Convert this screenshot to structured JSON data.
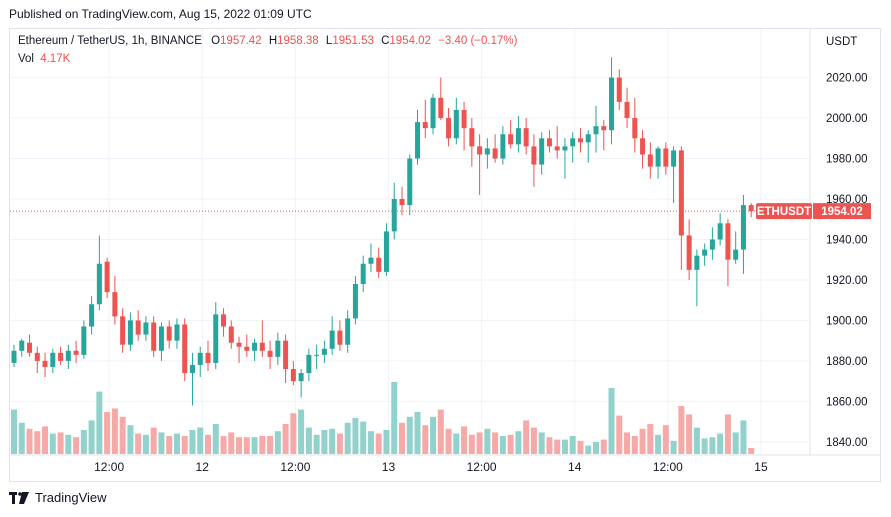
{
  "header": {
    "published": "Published on TradingView.com, Aug 15, 2022 01:09 UTC"
  },
  "legend": {
    "symbol": "Ethereum / TetherUS, 1h, BINANCE",
    "open_label": "O",
    "open": "1957.42",
    "high_label": "H",
    "high": "1958.38",
    "low_label": "L",
    "low": "1951.53",
    "close_label": "C",
    "close": "1954.02",
    "change": "−3.40 (−0.17%)",
    "vol_label": "Vol",
    "vol": "4.17K"
  },
  "price_axis": {
    "currency": "USDT",
    "ticks": [
      "2020.00",
      "2000.00",
      "1980.00",
      "1960.00",
      "1940.00",
      "1920.00",
      "1900.00",
      "1880.00",
      "1860.00",
      "1840.00"
    ],
    "tick_values": [
      2020,
      2000,
      1980,
      1960,
      1940,
      1920,
      1900,
      1880,
      1860,
      1840
    ],
    "last_symbol": "ETHUSDT",
    "last_price": "1954.02"
  },
  "time_axis": {
    "labels": [
      "12:00",
      "12",
      "12:00",
      "13",
      "12:00",
      "14",
      "12:00",
      "15"
    ],
    "label_index": [
      12,
      24,
      36,
      48,
      60,
      72,
      84,
      96
    ]
  },
  "footer": {
    "brand": "TradingView"
  },
  "colors": {
    "up": "#26a69a",
    "down": "#ef5350",
    "up_vol": "#92d2cc",
    "down_vol": "#f7a9a7",
    "grid": "#f0f3fa"
  },
  "chart_data": {
    "type": "candlestick",
    "title": "Ethereum / TetherUS, 1h, BINANCE",
    "ylabel": "USDT",
    "ylim": [
      1834,
      2044
    ],
    "candles": [
      [
        1879,
        1888,
        1877,
        1885,
        1.85
      ],
      [
        1885,
        1891,
        1882,
        1890,
        1.3
      ],
      [
        1889,
        1893,
        1882,
        1884,
        1.05
      ],
      [
        1884,
        1887,
        1874,
        1880,
        0.95
      ],
      [
        1880,
        1884,
        1872,
        1877,
        1.15
      ],
      [
        1877,
        1886,
        1874,
        1884,
        0.85
      ],
      [
        1884,
        1887,
        1878,
        1880,
        0.9
      ],
      [
        1880,
        1888,
        1876,
        1885,
        0.8
      ],
      [
        1885,
        1890,
        1879,
        1883,
        0.7
      ],
      [
        1883,
        1900,
        1881,
        1897,
        1.0
      ],
      [
        1897,
        1912,
        1893,
        1908,
        1.4
      ],
      [
        1908,
        1942,
        1905,
        1928,
        2.6
      ],
      [
        1929,
        1931,
        1911,
        1914,
        1.75
      ],
      [
        1914,
        1922,
        1898,
        1902,
        1.9
      ],
      [
        1902,
        1906,
        1884,
        1888,
        1.55
      ],
      [
        1888,
        1904,
        1885,
        1900,
        1.2
      ],
      [
        1900,
        1905,
        1890,
        1893,
        0.85
      ],
      [
        1893,
        1902,
        1890,
        1899,
        0.8
      ],
      [
        1899,
        1902,
        1882,
        1885,
        1.1
      ],
      [
        1885,
        1899,
        1880,
        1897,
        0.9
      ],
      [
        1897,
        1900,
        1886,
        1890,
        0.75
      ],
      [
        1890,
        1901,
        1886,
        1898,
        0.85
      ],
      [
        1898,
        1901,
        1870,
        1874,
        0.75
      ],
      [
        1874,
        1884,
        1858,
        1878,
        1.0
      ],
      [
        1878,
        1887,
        1872,
        1884,
        1.1
      ],
      [
        1884,
        1890,
        1875,
        1879,
        0.8
      ],
      [
        1879,
        1909,
        1876,
        1903,
        1.25
      ],
      [
        1903,
        1906,
        1892,
        1897,
        0.75
      ],
      [
        1897,
        1900,
        1886,
        1889,
        0.9
      ],
      [
        1889,
        1892,
        1879,
        1887,
        0.7
      ],
      [
        1887,
        1893,
        1882,
        1885,
        0.7
      ],
      [
        1885,
        1891,
        1880,
        1889,
        0.7
      ],
      [
        1889,
        1900,
        1882,
        1885,
        0.75
      ],
      [
        1885,
        1890,
        1876,
        1882,
        0.75
      ],
      [
        1882,
        1894,
        1878,
        1890,
        0.95
      ],
      [
        1890,
        1893,
        1869,
        1876,
        1.25
      ],
      [
        1876,
        1880,
        1868,
        1870,
        1.7
      ],
      [
        1870,
        1876,
        1862,
        1874,
        1.85
      ],
      [
        1874,
        1886,
        1870,
        1883,
        1.1
      ],
      [
        1883,
        1888,
        1876,
        1883,
        0.8
      ],
      [
        1883,
        1890,
        1879,
        1886,
        1.0
      ],
      [
        1886,
        1902,
        1883,
        1895,
        1.05
      ],
      [
        1895,
        1900,
        1885,
        1888,
        0.85
      ],
      [
        1888,
        1905,
        1884,
        1901,
        1.3
      ],
      [
        1901,
        1922,
        1898,
        1918,
        1.5
      ],
      [
        1918,
        1932,
        1914,
        1928,
        1.35
      ],
      [
        1928,
        1938,
        1924,
        1931,
        0.95
      ],
      [
        1931,
        1936,
        1921,
        1924,
        0.85
      ],
      [
        1924,
        1948,
        1922,
        1944,
        1.0
      ],
      [
        1944,
        1968,
        1940,
        1960,
        3.0
      ],
      [
        1960,
        1966,
        1952,
        1957,
        1.3
      ],
      [
        1957,
        1982,
        1952,
        1980,
        1.55
      ],
      [
        1980,
        2004,
        1977,
        1998,
        1.75
      ],
      [
        1998,
        2009,
        1990,
        1995,
        1.2
      ],
      [
        1995,
        2012,
        1992,
        2010,
        1.55
      ],
      [
        2010,
        2020,
        1999,
        2000,
        1.85
      ],
      [
        2000,
        2005,
        1986,
        1990,
        1.05
      ],
      [
        1990,
        2010,
        1987,
        2004,
        0.85
      ],
      [
        2004,
        2008,
        1984,
        1995,
        1.15
      ],
      [
        1995,
        2000,
        1976,
        1986,
        0.8
      ],
      [
        1986,
        1992,
        1962,
        1982,
        0.9
      ],
      [
        1982,
        1990,
        1975,
        1985,
        1.05
      ],
      [
        1985,
        1992,
        1978,
        1980,
        0.9
      ],
      [
        1980,
        1996,
        1977,
        1992,
        0.75
      ],
      [
        1992,
        1999,
        1985,
        1987,
        0.8
      ],
      [
        1987,
        2001,
        1983,
        1995,
        0.95
      ],
      [
        1995,
        2000,
        1982,
        1986,
        1.4
      ],
      [
        1986,
        1992,
        1966,
        1977,
        1.1
      ],
      [
        1977,
        1993,
        1972,
        1990,
        0.9
      ],
      [
        1990,
        1994,
        1983,
        1986,
        0.7
      ],
      [
        1986,
        1996,
        1980,
        1984,
        0.6
      ],
      [
        1984,
        1990,
        1970,
        1986,
        0.6
      ],
      [
        1986,
        1993,
        1978,
        1990,
        0.75
      ],
      [
        1990,
        1995,
        1983,
        1988,
        0.55
      ],
      [
        1988,
        1994,
        1978,
        1992,
        0.35
      ],
      [
        1992,
        2006,
        1983,
        1996,
        0.5
      ],
      [
        1996,
        1999,
        1984,
        1994,
        0.6
      ],
      [
        1994,
        2030,
        1987,
        2020,
        2.75
      ],
      [
        2020,
        2024,
        2004,
        2008,
        1.6
      ],
      [
        2008,
        2015,
        1995,
        2000,
        0.9
      ],
      [
        2000,
        2010,
        1983,
        1990,
        0.75
      ],
      [
        1990,
        1994,
        1975,
        1982,
        1.05
      ],
      [
        1982,
        1988,
        1970,
        1976,
        1.25
      ],
      [
        1976,
        1986,
        1970,
        1985,
        0.8
      ],
      [
        1985,
        1988,
        1972,
        1976,
        1.2
      ],
      [
        1976,
        1986,
        1958,
        1984,
        0.55
      ],
      [
        1984,
        1986,
        1925,
        1942,
        2.0
      ],
      [
        1942,
        1950,
        1920,
        1925,
        1.65
      ],
      [
        1925,
        1935,
        1907,
        1932,
        1.1
      ],
      [
        1932,
        1938,
        1927,
        1935,
        0.65
      ],
      [
        1935,
        1946,
        1930,
        1940,
        0.7
      ],
      [
        1940,
        1953,
        1937,
        1948,
        0.85
      ],
      [
        1948,
        1950,
        1917,
        1930,
        1.65
      ],
      [
        1930,
        1944,
        1928,
        1935,
        0.9
      ],
      [
        1935,
        1962,
        1923,
        1957,
        1.4
      ],
      [
        1957,
        1958,
        1951,
        1954,
        0.25
      ]
    ]
  }
}
